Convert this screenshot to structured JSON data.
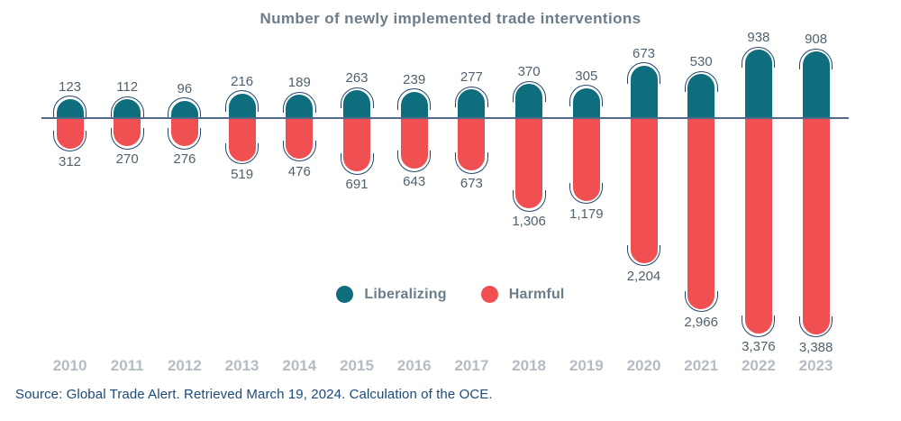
{
  "chart_data": {
    "type": "bar",
    "subtype": "diverging-vertical-pill",
    "title": "Number of newly implemented trade interventions",
    "categories": [
      "2010",
      "2011",
      "2012",
      "2013",
      "2014",
      "2015",
      "2016",
      "2017",
      "2018",
      "2019",
      "2020",
      "2021",
      "2022",
      "2023"
    ],
    "series": [
      {
        "name": "Liberalizing",
        "direction": "up",
        "color": "#0F6E7E",
        "values": [
          123,
          112,
          96,
          216,
          189,
          263,
          239,
          277,
          370,
          305,
          673,
          530,
          938,
          908
        ]
      },
      {
        "name": "Harmful",
        "direction": "down",
        "color": "#F05052",
        "values": [
          312,
          270,
          276,
          519,
          476,
          691,
          643,
          673,
          1306,
          1179,
          2204,
          2966,
          3376,
          3388
        ]
      }
    ],
    "baseline_value": 0,
    "xlabel": "",
    "ylabel": "",
    "grid": "off",
    "y_axis": "hidden",
    "value_labels": "every bar, outside ends",
    "legend_position": "center-bottom"
  },
  "legend": {
    "items": [
      {
        "label": "Liberalizing",
        "color": "#0F6E7E"
      },
      {
        "label": "Harmful",
        "color": "#F05052"
      }
    ]
  },
  "source": {
    "text": "Source: Global Trade Alert. Retrieved March 19, 2024. Calculation of the OCE."
  },
  "colors": {
    "liberalizing": "#0F6E7E",
    "harmful": "#F05052",
    "cap_outline": "#24466B",
    "baseline": "#54688C",
    "title_text": "#6B7D89",
    "value_label_text": "#50616D",
    "year_label_text": "#B4BCC3",
    "source_text": "#1B4A78",
    "background": "#FFFFFF"
  }
}
